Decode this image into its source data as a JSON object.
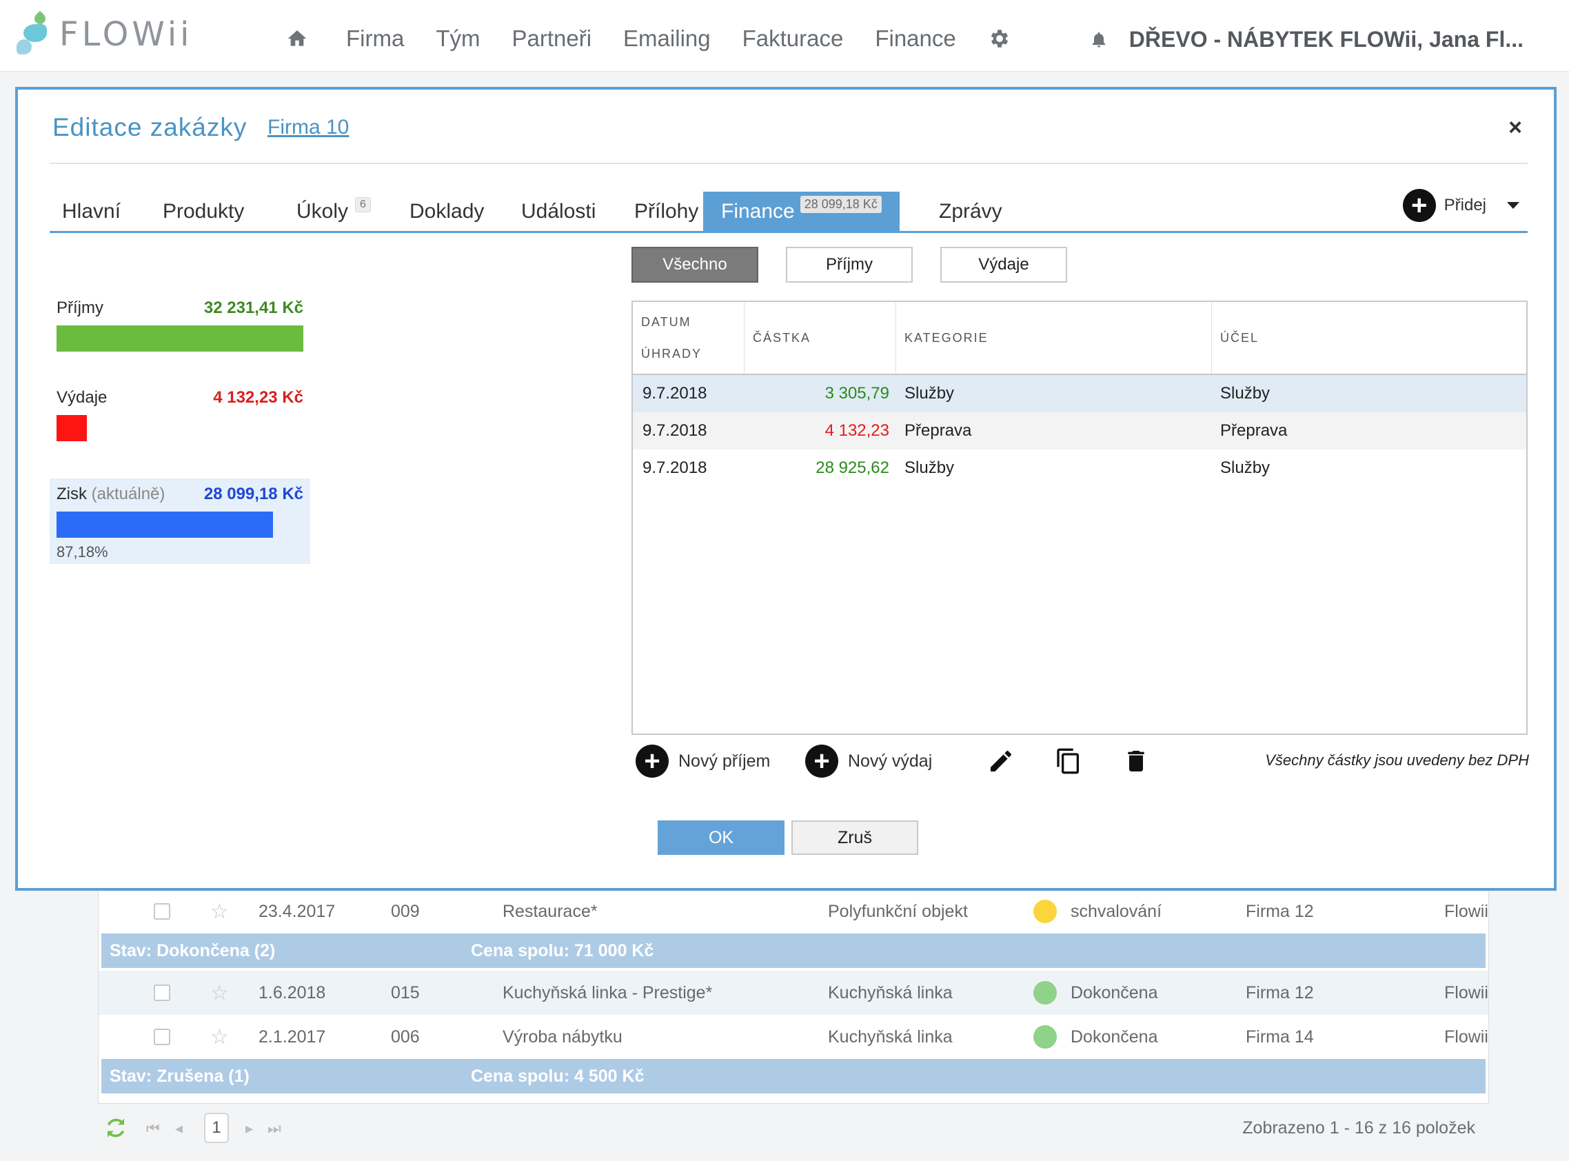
{
  "app": {
    "logo_text": "FLOWii",
    "nav": [
      "Firma",
      "Tým",
      "Partneři",
      "Emailing",
      "Fakturace",
      "Finance"
    ],
    "company": "DŘEVO - NÁBYTEK FLOWii, Jana Fl..."
  },
  "modal": {
    "title": "Editace zakázky",
    "subtitle": "Firma 10",
    "close": "×",
    "tabs": [
      {
        "label": "Hlavní"
      },
      {
        "label": "Produkty"
      },
      {
        "label": "Úkoly",
        "count": "6"
      },
      {
        "label": "Doklady"
      },
      {
        "label": "Události"
      },
      {
        "label": "Přílohy"
      },
      {
        "label": "Finance",
        "amount": "28 099,18 Kč",
        "active": true
      },
      {
        "label": "Zprávy"
      }
    ],
    "add_label": "Přidej",
    "summary": {
      "income_label": "Příjmy",
      "income_value": "32 231,41 Kč",
      "expense_label": "Výdaje",
      "expense_value": "4 132,23 Kč",
      "profit_label": "Zisk",
      "profit_note": "(aktuálně)",
      "profit_value": "28 099,18 Kč",
      "profit_pct": "87,18%",
      "expense_share": 0.128,
      "profit_share": 0.8718
    },
    "filters": [
      "Všechno",
      "Příjmy",
      "Výdaje"
    ],
    "filter_active": "Všechno",
    "table": {
      "headers": {
        "date_1": "DATUM",
        "date_2": "ÚHRADY",
        "amount": "ČÁSTKA",
        "category": "KATEGORIE",
        "purpose": "ÚČEL"
      },
      "rows": [
        {
          "date": "9.7.2018",
          "amount": "3 305,79",
          "category": "Služby",
          "purpose": "Služby",
          "type": "income"
        },
        {
          "date": "9.7.2018",
          "amount": "4 132,23",
          "category": "Přeprava",
          "purpose": "Přeprava",
          "type": "expense"
        },
        {
          "date": "9.7.2018",
          "amount": "28 925,62",
          "category": "Služby",
          "purpose": "Služby",
          "type": "income"
        }
      ]
    },
    "actions": {
      "new_income": "Nový příjem",
      "new_expense": "Nový výdaj",
      "note": "Všechny částky jsou uvedeny bez DPH"
    },
    "ok": "OK",
    "cancel": "Zruš"
  },
  "background": {
    "row_top": {
      "date": "23.4.2017",
      "num": "009",
      "name": "Restaurace*",
      "type": "Polyfunkční objekt",
      "status": "schvalování",
      "firm": "Firma 12",
      "owner": "Flowii"
    },
    "group_done": {
      "label": "Stav: Dokončena (2)",
      "price": "Cena spolu: 71 000 Kč"
    },
    "rows_done": [
      {
        "date": "1.6.2018",
        "num": "015",
        "name": "Kuchyňská linka - Prestige*",
        "type": "Kuchyňská linka",
        "status": "Dokončena",
        "firm": "Firma 12",
        "owner": "Flowii"
      },
      {
        "date": "2.1.2017",
        "num": "006",
        "name": "Výroba nábytku",
        "type": "Kuchyňská linka",
        "status": "Dokončena",
        "firm": "Firma 14",
        "owner": "Flowii"
      }
    ],
    "group_cancel": {
      "label": "Stav: Zrušena (1)",
      "price": "Cena spolu: 4 500 Kč"
    },
    "pager": {
      "page": "1",
      "info": "Zobrazeno 1 - 16 z 16 položek"
    }
  }
}
